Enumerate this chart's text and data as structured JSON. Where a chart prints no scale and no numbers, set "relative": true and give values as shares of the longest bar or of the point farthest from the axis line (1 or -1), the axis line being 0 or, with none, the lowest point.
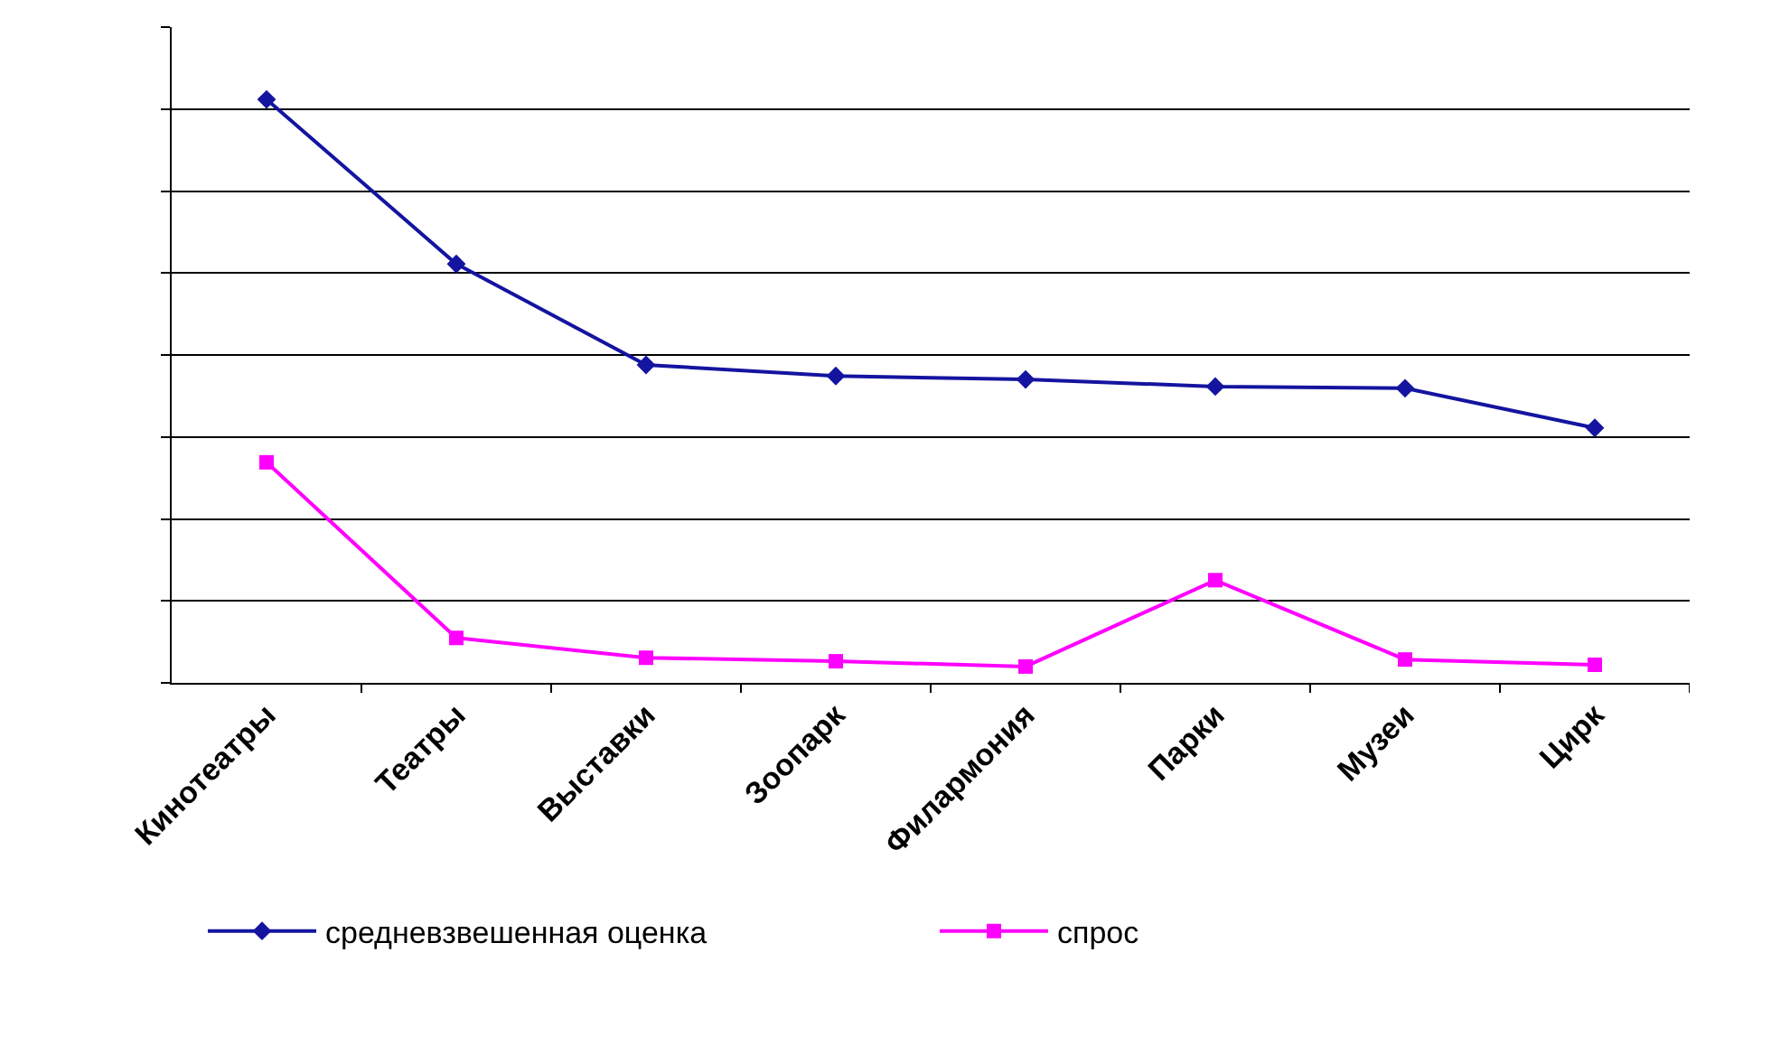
{
  "chart_data": {
    "type": "line",
    "relative": true,
    "grid": "y",
    "legend": "bottom",
    "tick_labels": "x",
    "categories": [
      "Кинотеатры",
      "Театры",
      "Выставки",
      "Зоопарк",
      "Филармония",
      "Парки",
      "Музеи",
      "Цирк"
    ],
    "series": [
      {
        "name": "средневзвешенная оценка",
        "color": "#1414a0",
        "marker": "diamond",
        "values": [
          1,
          0.718,
          0.545,
          0.526,
          0.52,
          0.508,
          0.505,
          0.437
        ]
      },
      {
        "name": "спрос",
        "color": "#ff00ff",
        "marker": "square",
        "values": [
          0.378,
          0.077,
          0.043,
          0.037,
          0.028,
          0.176,
          0.04,
          0.031
        ]
      }
    ]
  }
}
